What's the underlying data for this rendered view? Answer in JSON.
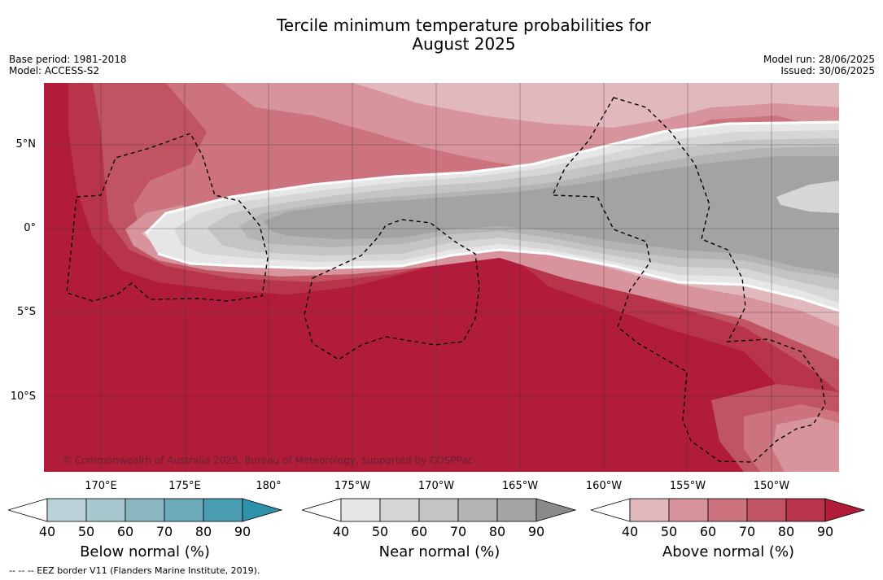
{
  "title_line1": "Tercile minimum temperature probabilities for",
  "title_line2": "August 2025",
  "base_period": "Base period: 1981-2018",
  "model": "Model: ACCESS-S2",
  "model_run": "Model run: 28/06/2025",
  "issued": "Issued: 30/06/2025",
  "copyright": "© Commonwealth of Australia 2025, Bureau of Meteorology, supported by COSPPac",
  "lat_labels": [
    "5°N",
    "0°",
    "5°S",
    "10°S"
  ],
  "lon_labels": [
    "170°E",
    "175°E",
    "180°",
    "175°W",
    "170°W",
    "165°W",
    "160°W",
    "155°W",
    "150°W"
  ],
  "colorbars": [
    {
      "title": "Below normal (%)",
      "ticks": [
        "40",
        "50",
        "60",
        "70",
        "80",
        "90"
      ],
      "colors": [
        "#bcd2d9",
        "#a7c7ce",
        "#8ab6c1",
        "#6aaab9",
        "#4a9db0",
        "#2e92ab"
      ]
    },
    {
      "title": "Near normal (%)",
      "ticks": [
        "40",
        "50",
        "60",
        "70",
        "80",
        "90"
      ],
      "colors": [
        "#e6e6e6",
        "#d6d6d6",
        "#c4c4c4",
        "#b4b4b4",
        "#a3a3a3",
        "#8a8a8a"
      ]
    },
    {
      "title": "Above normal (%)",
      "ticks": [
        "40",
        "50",
        "60",
        "70",
        "80",
        "90"
      ],
      "colors": [
        "#e2b8bf",
        "#d8949c",
        "#cc737e",
        "#c15462",
        "#b7344a",
        "#b21c3b"
      ]
    }
  ],
  "footnote": "--  --  -- EEZ border V11 (Flanders Marine Institute, 2019)."
}
